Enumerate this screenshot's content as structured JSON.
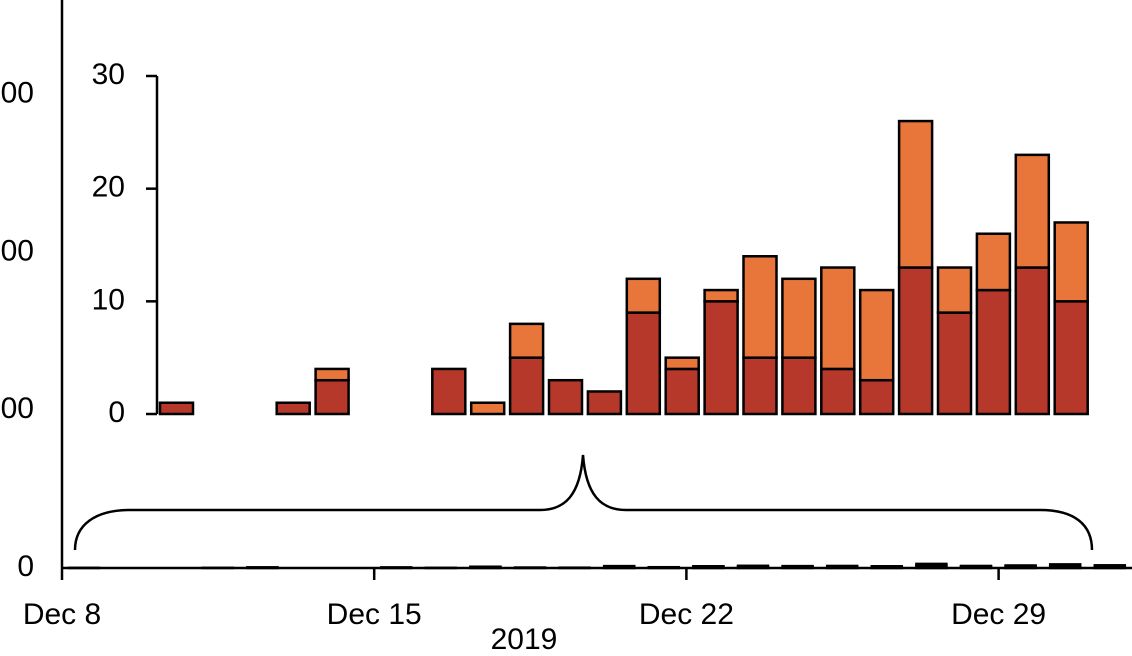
{
  "chart_data": {
    "type": "bar",
    "stacked": true,
    "x_label": "2019",
    "x": [
      8,
      9,
      10,
      11,
      12,
      13,
      14,
      15,
      16,
      17,
      18,
      19,
      20,
      21,
      22,
      23,
      24,
      25,
      26,
      27,
      28,
      29,
      30,
      31
    ],
    "series": [
      {
        "color": "#b5382a",
        "values": [
          1,
          0,
          0,
          1,
          3,
          0,
          0,
          4,
          0,
          5,
          3,
          2,
          9,
          4,
          10,
          5,
          5,
          4,
          3,
          13,
          9,
          11,
          13,
          10
        ]
      },
      {
        "color": "#e8763a",
        "values": [
          0,
          0,
          0,
          0,
          1,
          0,
          0,
          0,
          1,
          3,
          0,
          0,
          3,
          1,
          1,
          9,
          7,
          9,
          8,
          13,
          4,
          5,
          10,
          7
        ]
      }
    ],
    "ylim": [
      0,
      30
    ],
    "yticks": [
      0,
      10,
      20,
      30
    ],
    "outer": {
      "xlim": [
        8,
        32
      ],
      "xticks": [
        {
          "value": 8,
          "label": "Dec 8"
        },
        {
          "value": 15,
          "label": "Dec 15"
        },
        {
          "value": 22,
          "label": "Dec 22"
        },
        {
          "value": 29,
          "label": "Dec 29"
        }
      ],
      "ylim": [
        0,
        3600
      ],
      "yticks": [
        0,
        {
          "value": 1000,
          "label": "00"
        },
        {
          "value": 2000,
          "label": "00"
        },
        {
          "value": 3000,
          "label": "00"
        }
      ]
    }
  }
}
